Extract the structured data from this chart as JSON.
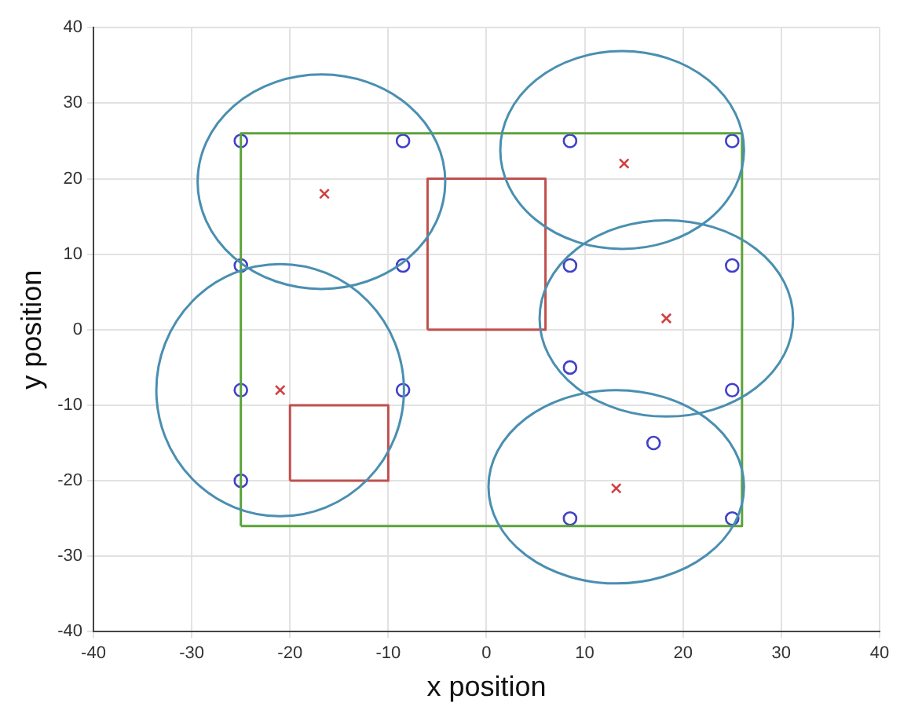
{
  "chart_data": {
    "type": "scatter",
    "xlabel": "x position",
    "ylabel": "y position",
    "xlim": [
      -40,
      40
    ],
    "xticks": [
      -40,
      -30,
      -20,
      -10,
      0,
      10,
      20,
      30,
      40
    ],
    "ylim": [
      -40,
      40
    ],
    "yticks": [
      -40,
      -30,
      -20,
      -10,
      0,
      10,
      20,
      30,
      40
    ],
    "grid": true,
    "legend": false,
    "series": [
      {
        "type": "line",
        "color": "#5ba33b",
        "marker": "none",
        "x": [
          -25,
          -25,
          26,
          26
        ],
        "values": [
          -26,
          26,
          26,
          -26
        ]
      },
      {
        "type": "line",
        "color": "#5ba33b",
        "marker": "none",
        "x": [
          -25,
          26
        ],
        "values": [
          -26,
          -26
        ]
      },
      {
        "type": "line",
        "color": "#c0504d",
        "marker": "none",
        "x": [
          -6,
          -6,
          6,
          6
        ],
        "values": [
          0,
          20,
          20,
          0
        ]
      },
      {
        "type": "line",
        "color": "#c0504d",
        "marker": "none",
        "x": [
          -6,
          6
        ],
        "values": [
          0,
          0
        ]
      },
      {
        "type": "line",
        "color": "#c0504d",
        "marker": "none",
        "x": [
          -20,
          -20,
          -10,
          -10
        ],
        "values": [
          -20,
          -10,
          -10,
          -20
        ]
      },
      {
        "type": "line",
        "color": "#c0504d",
        "marker": "none",
        "x": [
          -20,
          -10
        ],
        "values": [
          -20,
          -20
        ]
      },
      {
        "type": "scatter",
        "color": "#4040c8",
        "marker": "circle",
        "x": [
          -25,
          -8.5,
          -25,
          -8.5,
          -25,
          -8.5,
          -25,
          8.5,
          25,
          8.5,
          25,
          8.5,
          25,
          17,
          8.5,
          25
        ],
        "values": [
          25,
          25,
          8.5,
          8.5,
          -8,
          -8,
          -20,
          25,
          25,
          8.5,
          8.5,
          -5,
          -8,
          -15,
          -25,
          -25
        ]
      },
      {
        "type": "scatter",
        "color": "#d04040",
        "marker": "cross",
        "x": [
          -16.5,
          -21,
          14,
          18.3,
          13.2
        ],
        "values": [
          18,
          -8,
          22,
          1.5,
          -21
        ]
      }
    ]
  }
}
